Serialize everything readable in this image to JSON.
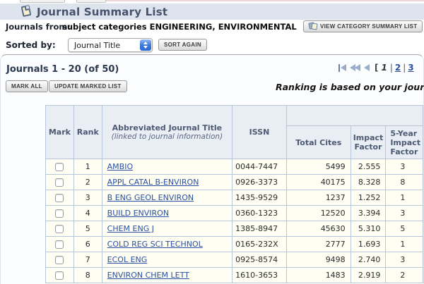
{
  "header": {
    "title": "Journal Summary List"
  },
  "filters": {
    "journals_from_label": "Journals from:",
    "journals_from_value": "subject categories ENGINEERING, ENVIRONMENTAL",
    "view_category_button": "VIEW CATEGORY SUMMARY LIST",
    "sorted_by_label": "Sorted by:",
    "sort_select_value": "Journal Title",
    "sort_again_button": "SORT AGAIN"
  },
  "results": {
    "range_text": "Journals 1 - 20 (of 50)",
    "mark_all_button": "MARK ALL",
    "update_marked_button": "UPDATE MARKED LIST",
    "ranking_note": "Ranking is based on your journ",
    "pagination": {
      "bracket": "[",
      "current_page": "1",
      "separator1": "|",
      "page2": "2",
      "separator2": "|",
      "page3": "3"
    }
  },
  "table": {
    "headers": {
      "mark": "Mark",
      "rank": "Rank",
      "title_line1": "Abbreviated Journal Title",
      "title_line2": "(linked to journal information)",
      "issn": "ISSN",
      "total_cites": "Total Cites",
      "impact_factor": "Impact Factor",
      "five_year_l1": "5-Year",
      "five_year_l2": "Impact",
      "five_year_l3": "Factor"
    },
    "rows": [
      {
        "rank": "1",
        "title": "AMBIO",
        "issn": "0044-7447",
        "total_cites": "5499",
        "impact_factor": "2.555",
        "five_year": "3"
      },
      {
        "rank": "2",
        "title": "APPL CATAL B-ENVIRON",
        "issn": "0926-3373",
        "total_cites": "40175",
        "impact_factor": "8.328",
        "five_year": "8"
      },
      {
        "rank": "3",
        "title": "B ENG GEOL ENVIRON",
        "issn": "1435-9529",
        "total_cites": "1237",
        "impact_factor": "1.252",
        "five_year": "1"
      },
      {
        "rank": "4",
        "title": "BUILD ENVIRON",
        "issn": "0360-1323",
        "total_cites": "12520",
        "impact_factor": "3.394",
        "five_year": "3"
      },
      {
        "rank": "5",
        "title": "CHEM ENG J",
        "issn": "1385-8947",
        "total_cites": "45630",
        "impact_factor": "5.310",
        "five_year": "5"
      },
      {
        "rank": "6",
        "title": "COLD REG SCI TECHNOL",
        "issn": "0165-232X",
        "total_cites": "2777",
        "impact_factor": "1.693",
        "five_year": "1"
      },
      {
        "rank": "7",
        "title": "ECOL ENG",
        "issn": "0925-8574",
        "total_cites": "9498",
        "impact_factor": "2.740",
        "five_year": "3"
      },
      {
        "rank": "8",
        "title": "ENVIRON CHEM LETT",
        "issn": "1610-3653",
        "total_cites": "1483",
        "impact_factor": "2.919",
        "five_year": "2"
      }
    ]
  },
  "colors": {
    "header_band": "#dde4ee",
    "table_header_bg": "#e9edf4",
    "table_border": "#b9c5d9",
    "row_bg": "#fffef2",
    "link_blue": "#2b4fa2",
    "title_slate": "#46536b"
  }
}
